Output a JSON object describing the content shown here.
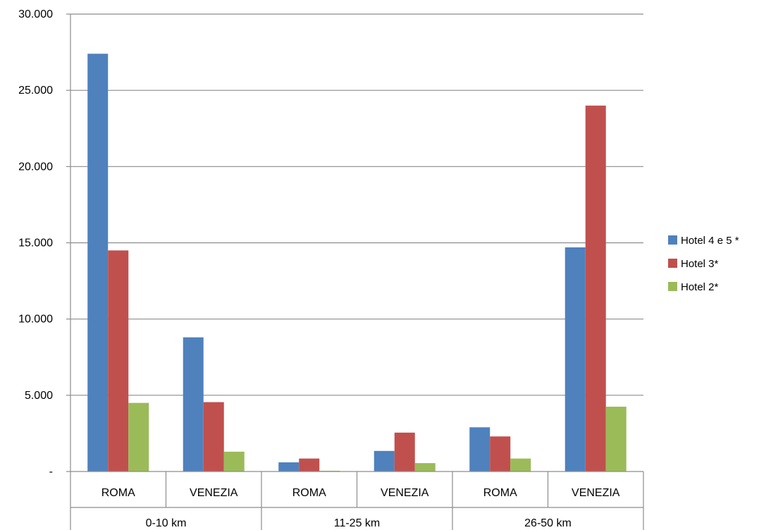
{
  "chart_data": {
    "type": "bar",
    "title": "",
    "xlabel": "",
    "ylabel": "",
    "ylim": [
      0,
      30000
    ],
    "yticks": [
      0,
      5000,
      10000,
      15000,
      20000,
      25000,
      30000
    ],
    "ytick_labels": [
      "-",
      "5.000",
      "10.000",
      "15.000",
      "20.000",
      "25.000",
      "30.000"
    ],
    "grid": true,
    "legend_position": "right",
    "groups": [
      {
        "label": "0-10 km",
        "categories": [
          "ROMA",
          "VENEZIA"
        ]
      },
      {
        "label": "11-25 km",
        "categories": [
          "ROMA",
          "VENEZIA"
        ]
      },
      {
        "label": "26-50 km",
        "categories": [
          "ROMA",
          "VENEZIA"
        ]
      }
    ],
    "categories": [
      "ROMA",
      "VENEZIA",
      "ROMA",
      "VENEZIA",
      "ROMA",
      "VENEZIA"
    ],
    "series": [
      {
        "name": "Hotel 4 e 5 *",
        "color": "#4F81BD",
        "values": [
          27400,
          8800,
          600,
          1350,
          2900,
          14700
        ]
      },
      {
        "name": "Hotel 3*",
        "color": "#C0504D",
        "values": [
          14500,
          4550,
          850,
          2550,
          2300,
          24000
        ]
      },
      {
        "name": "Hotel 2*",
        "color": "#9BBB59",
        "values": [
          4500,
          1300,
          50,
          550,
          850,
          4250
        ]
      }
    ]
  }
}
